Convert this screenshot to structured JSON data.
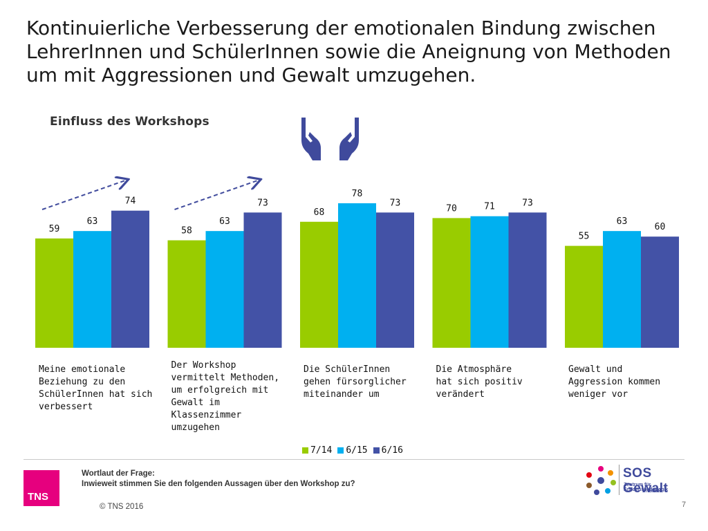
{
  "slide": {
    "title": "Kontinuierliche Verbesserung der emotionalen Bindung zwischen LehrerInnen und SchülerInnen sowie die Aneignung von Methoden um mit Aggressionen und Gewalt umzugehen.",
    "subtitle": "Einfluss des Workshops",
    "hands_icon": "hands-icon"
  },
  "footer": {
    "question_heading": "Wortlaut der Frage:",
    "question_text": "Inwieweit stimmen Sie den folgenden Aussagen über den Workshop zu?",
    "copyright": "© TNS 2016",
    "page_number": "7",
    "tns_logo_text": "TNS",
    "sos_title": "SOS Gewalt",
    "sos_subtitle_1": "Zentrum für Friedenspädagogik",
    "sos_subtitle_2": "in Israel"
  },
  "chart_data": {
    "type": "bar",
    "title": "Einfluss des Workshops",
    "xlabel": "",
    "ylabel": "",
    "ylim": [
      0,
      100
    ],
    "grid": false,
    "legend_position": "bottom",
    "categories": [
      "Meine emotionale\nBeziehung zu den\nSchülerInnen hat sich\nverbessert",
      "Der Workshop\nvermittelt Methoden,\num erfolgreich mit\nGewalt  im\nKlassenzimmer\numzugehen",
      "Die SchülerInnen\ngehen fürsorglicher\nmiteinander um",
      "Die Atmosphäre\nhat sich positiv\nverändert",
      "Gewalt und\nAggression kommen\nweniger vor"
    ],
    "series": [
      {
        "name": "7/14",
        "color": "#99cc00",
        "values": [
          59,
          58,
          68,
          70,
          55
        ]
      },
      {
        "name": "6/15",
        "color": "#00b0f0",
        "values": [
          63,
          63,
          78,
          71,
          63
        ]
      },
      {
        "name": "6/16",
        "color": "#4352a6",
        "values": [
          74,
          73,
          73,
          73,
          60
        ]
      }
    ],
    "trend_arrows": [
      0,
      1
    ]
  }
}
